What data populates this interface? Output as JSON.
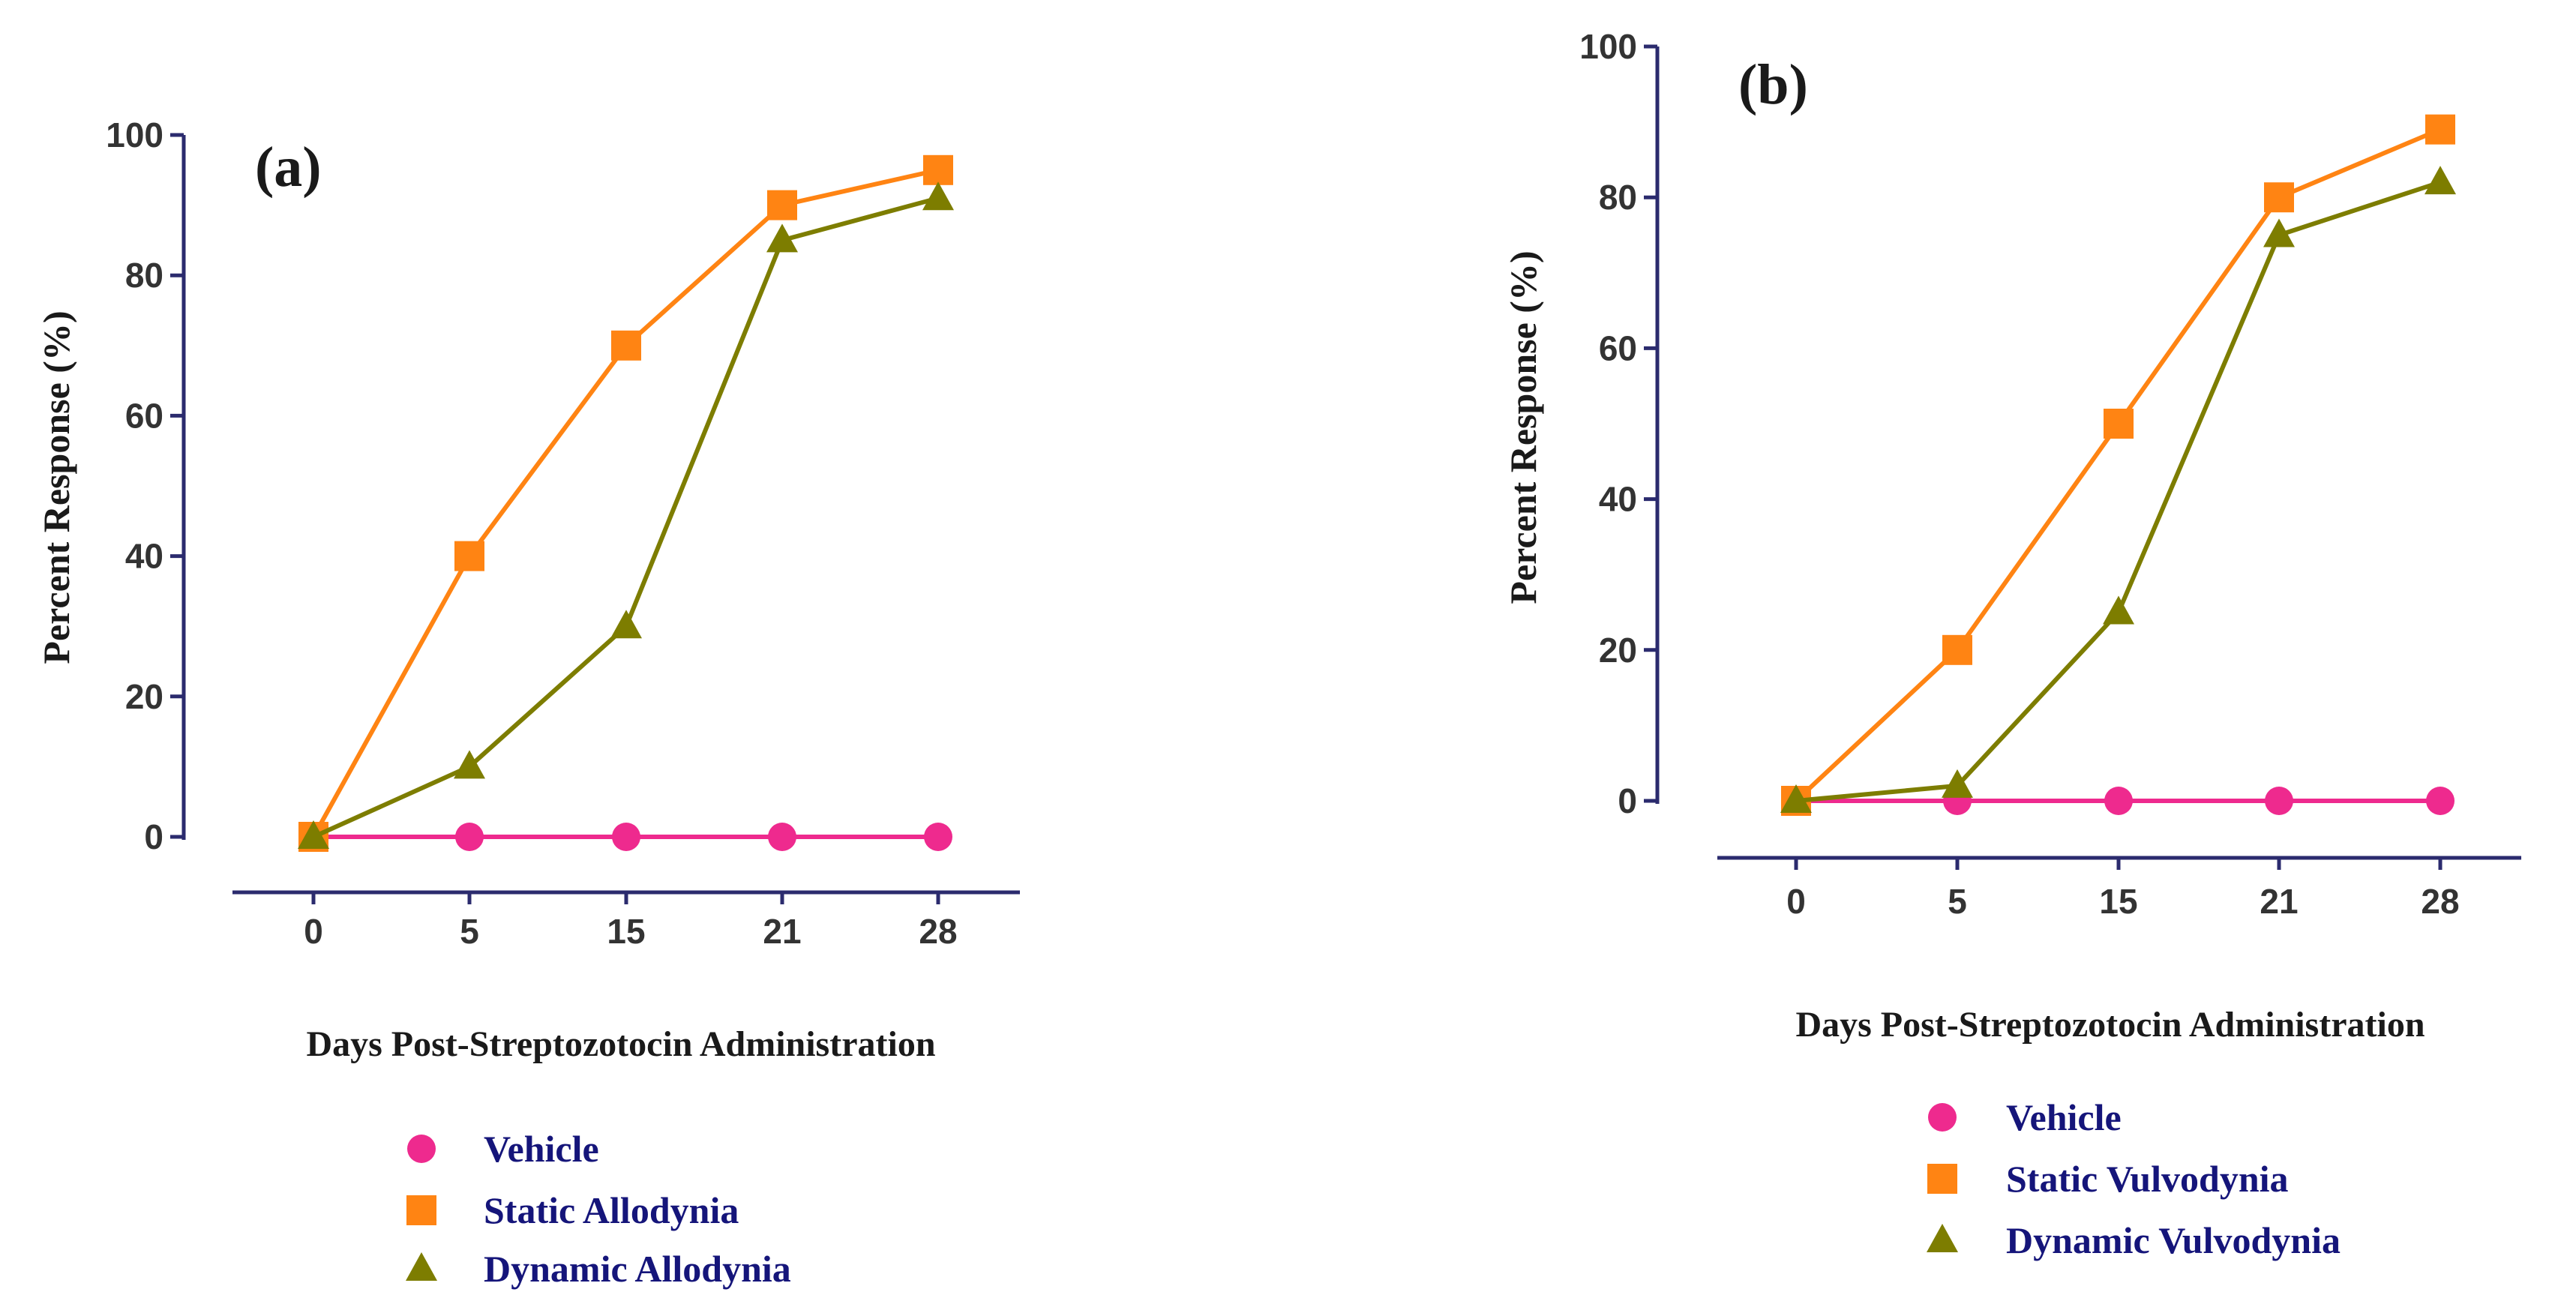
{
  "colors": {
    "vehicle": "#ee2a8e",
    "static": "#ff8413",
    "dynamic": "#7d7d00",
    "axis": "#2b2b6e",
    "tick_text": "#333333",
    "legend_text": "#15157a"
  },
  "chart_data": [
    {
      "type": "line",
      "panel_label": "(a)",
      "categories": [
        "0",
        "5",
        "15",
        "21",
        "28"
      ],
      "xlabel": "Days Post-Streptozotocin Administration",
      "ylabel": "Percent Response (%)",
      "ylim": [
        0,
        100
      ],
      "yticks": [
        "0",
        "20",
        "40",
        "60",
        "80",
        "100"
      ],
      "grid": false,
      "legend_position": "bottom",
      "series": [
        {
          "name": "Vehicle",
          "marker": "circle",
          "values": [
            0,
            0,
            0,
            0,
            0
          ]
        },
        {
          "name": "Static Allodynia",
          "marker": "square",
          "values": [
            0,
            40,
            70,
            90,
            95
          ]
        },
        {
          "name": "Dynamic Allodynia",
          "marker": "triangle",
          "values": [
            0,
            10,
            30,
            85,
            91
          ]
        }
      ]
    },
    {
      "type": "line",
      "panel_label": "(b)",
      "categories": [
        "0",
        "5",
        "15",
        "21",
        "28"
      ],
      "xlabel": "Days Post-Streptozotocin Administration",
      "ylabel": "Percent Response (%)",
      "ylim": [
        0,
        100
      ],
      "yticks": [
        "0",
        "20",
        "40",
        "60",
        "80",
        "100"
      ],
      "grid": false,
      "legend_position": "bottom",
      "series": [
        {
          "name": "Vehicle",
          "marker": "circle",
          "values": [
            0,
            0,
            0,
            0,
            0
          ]
        },
        {
          "name": "Static Vulvodynia",
          "marker": "square",
          "values": [
            0,
            20,
            50,
            80,
            89
          ]
        },
        {
          "name": "Dynamic Vulvodynia",
          "marker": "triangle",
          "values": [
            0,
            2,
            25,
            75,
            82
          ]
        }
      ]
    }
  ]
}
